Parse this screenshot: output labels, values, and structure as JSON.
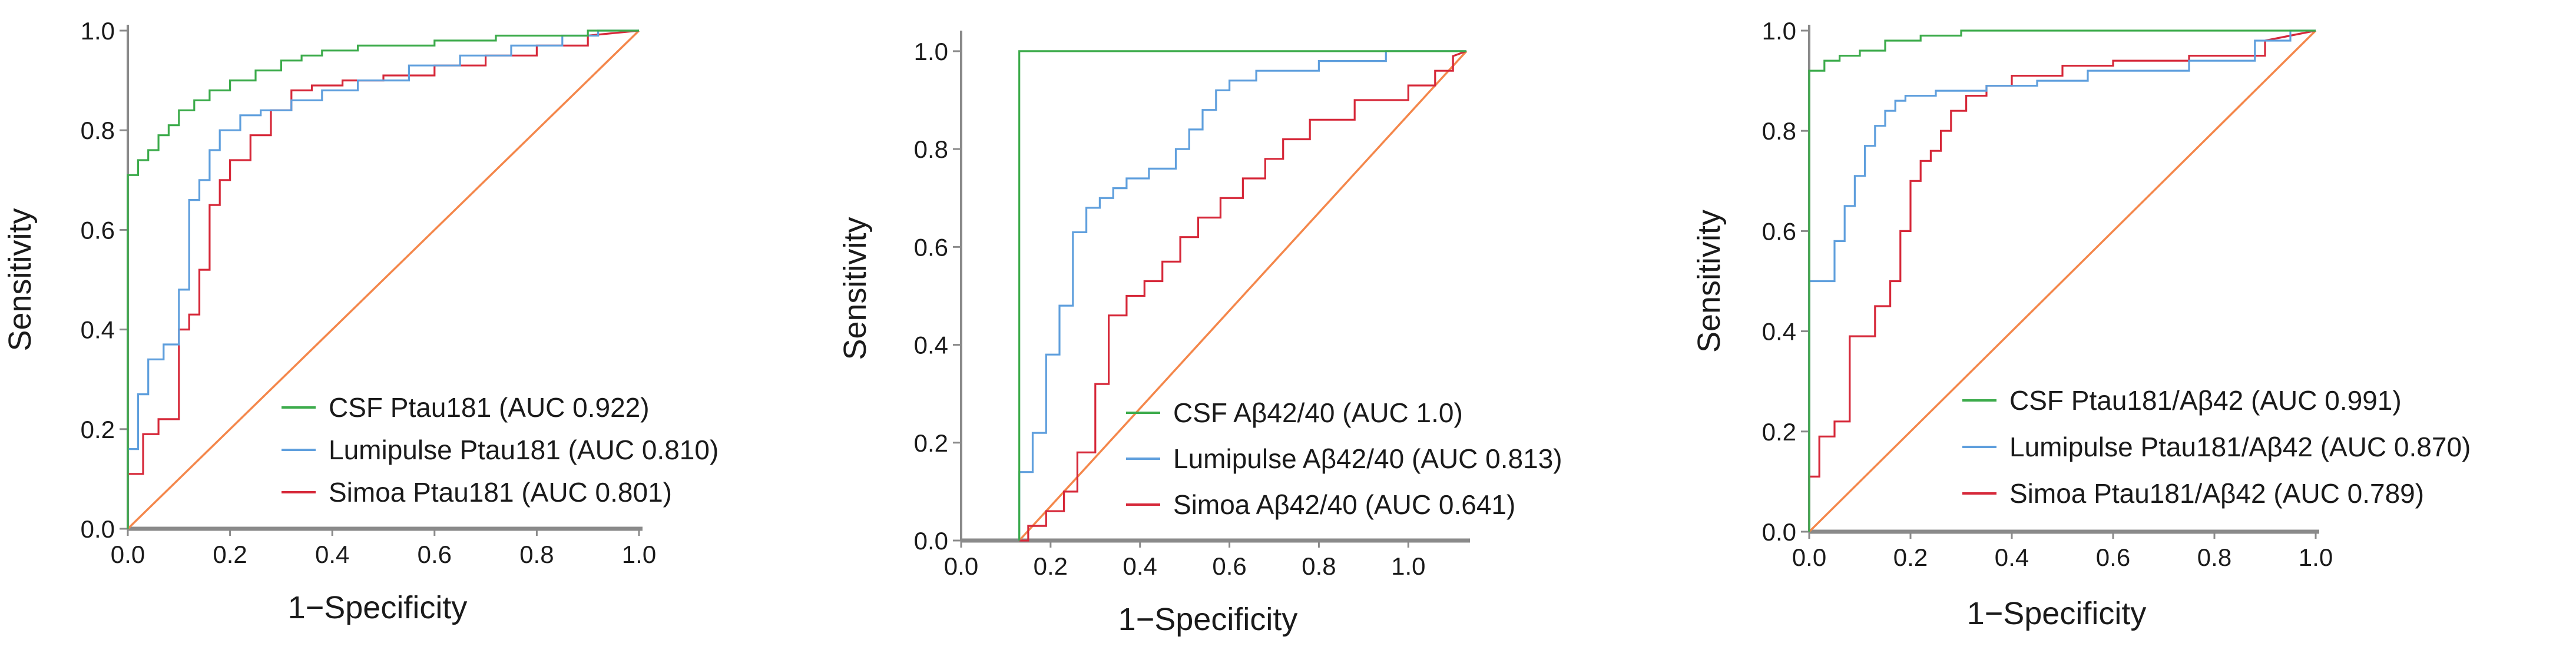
{
  "chart_data": [
    {
      "type": "line",
      "title": "",
      "xlabel": "1−Specificity",
      "ylabel": "Sensitivity",
      "xlim": [
        0,
        1
      ],
      "ylim": [
        0,
        1
      ],
      "xticks": [
        0,
        0.2,
        0.4,
        0.6,
        0.8,
        1.0
      ],
      "yticks": [
        0,
        0.2,
        0.4,
        0.6,
        0.8,
        1.0
      ],
      "xtick_labels": [
        "0.0",
        "0.2",
        "0.4",
        "0.6",
        "0.8",
        "1.0"
      ],
      "ytick_labels": [
        "0.0",
        "0.2",
        "0.4",
        "0.6",
        "0.8",
        "1.0"
      ],
      "grid": false,
      "legend_position": "bottom-right",
      "reference_line": {
        "color": "#f4874b",
        "x": [
          0,
          1
        ],
        "y": [
          0,
          1
        ]
      },
      "series": [
        {
          "name": "CSF Ptau181 (AUC 0.922)",
          "color": "#3cab4b",
          "x": [
            0,
            0,
            0.02,
            0.02,
            0.04,
            0.04,
            0.06,
            0.06,
            0.08,
            0.08,
            0.1,
            0.1,
            0.13,
            0.13,
            0.16,
            0.16,
            0.2,
            0.2,
            0.25,
            0.25,
            0.3,
            0.3,
            0.34,
            0.34,
            0.38,
            0.38,
            0.45,
            0.45,
            0.6,
            0.6,
            0.72,
            0.72,
            0.9,
            0.9,
            1.0
          ],
          "y": [
            0,
            0.71,
            0.71,
            0.74,
            0.74,
            0.76,
            0.76,
            0.79,
            0.79,
            0.81,
            0.81,
            0.84,
            0.84,
            0.86,
            0.86,
            0.88,
            0.88,
            0.9,
            0.9,
            0.92,
            0.92,
            0.94,
            0.94,
            0.95,
            0.95,
            0.96,
            0.96,
            0.97,
            0.97,
            0.98,
            0.98,
            0.99,
            0.99,
            1.0,
            1.0
          ]
        },
        {
          "name": "Lumipulse Ptau181 (AUC 0.810)",
          "color": "#5f9fdd",
          "x": [
            0,
            0,
            0.02,
            0.02,
            0.04,
            0.04,
            0.07,
            0.07,
            0.1,
            0.1,
            0.12,
            0.12,
            0.14,
            0.14,
            0.16,
            0.16,
            0.18,
            0.18,
            0.22,
            0.22,
            0.26,
            0.26,
            0.32,
            0.32,
            0.38,
            0.38,
            0.45,
            0.45,
            0.55,
            0.55,
            0.65,
            0.65,
            0.75,
            0.75,
            0.85,
            0.85,
            0.92,
            0.92,
            1.0
          ],
          "y": [
            0,
            0.16,
            0.16,
            0.27,
            0.27,
            0.34,
            0.34,
            0.37,
            0.37,
            0.48,
            0.48,
            0.66,
            0.66,
            0.7,
            0.7,
            0.76,
            0.76,
            0.8,
            0.8,
            0.83,
            0.83,
            0.84,
            0.84,
            0.86,
            0.86,
            0.88,
            0.88,
            0.9,
            0.9,
            0.93,
            0.93,
            0.95,
            0.95,
            0.97,
            0.97,
            0.99,
            0.99,
            1.0,
            1.0
          ]
        },
        {
          "name": "Simoa Ptau181 (AUC 0.801)",
          "color": "#d62839",
          "x": [
            0,
            0,
            0.03,
            0.03,
            0.06,
            0.06,
            0.1,
            0.1,
            0.12,
            0.12,
            0.14,
            0.14,
            0.16,
            0.16,
            0.18,
            0.18,
            0.2,
            0.2,
            0.24,
            0.24,
            0.28,
            0.28,
            0.32,
            0.32,
            0.36,
            0.36,
            0.42,
            0.42,
            0.5,
            0.5,
            0.6,
            0.6,
            0.7,
            0.7,
            0.8,
            0.8,
            0.9,
            0.9,
            1.0
          ],
          "y": [
            0,
            0.11,
            0.11,
            0.19,
            0.19,
            0.22,
            0.22,
            0.4,
            0.4,
            0.43,
            0.43,
            0.52,
            0.52,
            0.65,
            0.65,
            0.7,
            0.7,
            0.74,
            0.74,
            0.79,
            0.79,
            0.84,
            0.84,
            0.88,
            0.88,
            0.89,
            0.89,
            0.9,
            0.9,
            0.91,
            0.91,
            0.93,
            0.93,
            0.95,
            0.95,
            0.97,
            0.97,
            0.99,
            1.0
          ]
        }
      ]
    },
    {
      "type": "line",
      "title": "",
      "xlabel": "1−Specificity",
      "ylabel": "Sensitivity",
      "xlim": [
        0,
        1.13
      ],
      "ylim": [
        0,
        1.03
      ],
      "xticks": [
        0,
        0.2,
        0.4,
        0.6,
        0.8,
        1.0
      ],
      "yticks": [
        0,
        0.2,
        0.4,
        0.6,
        0.8,
        1.0
      ],
      "xtick_labels": [
        "0.0",
        "0.2",
        "0.4",
        "0.6",
        "0.8",
        "1.0"
      ],
      "ytick_labels": [
        "0.0",
        "0.2",
        "0.4",
        "0.6",
        "0.8",
        "1.0"
      ],
      "grid": false,
      "legend_position": "bottom-right",
      "reference_line": {
        "color": "#f4874b",
        "x": [
          0.13,
          1.13
        ],
        "y": [
          0,
          1.0
        ]
      },
      "series": [
        {
          "name": "CSF Aβ42/40 (AUC 1.0)",
          "color": "#3cab4b",
          "x": [
            0.13,
            0.13,
            1.13
          ],
          "y": [
            0,
            1.0,
            1.0
          ]
        },
        {
          "name": "Lumipulse Aβ42/40 (AUC 0.813)",
          "color": "#5f9fdd",
          "x": [
            0.13,
            0.13,
            0.16,
            0.16,
            0.19,
            0.19,
            0.22,
            0.22,
            0.25,
            0.25,
            0.28,
            0.28,
            0.31,
            0.31,
            0.34,
            0.34,
            0.37,
            0.37,
            0.42,
            0.42,
            0.48,
            0.48,
            0.51,
            0.51,
            0.54,
            0.54,
            0.57,
            0.57,
            0.6,
            0.6,
            0.66,
            0.66,
            0.8,
            0.8,
            0.95,
            0.95,
            1.13
          ],
          "y": [
            0,
            0.14,
            0.14,
            0.22,
            0.22,
            0.38,
            0.38,
            0.48,
            0.48,
            0.63,
            0.63,
            0.68,
            0.68,
            0.7,
            0.7,
            0.72,
            0.72,
            0.74,
            0.74,
            0.76,
            0.76,
            0.8,
            0.8,
            0.84,
            0.84,
            0.88,
            0.88,
            0.92,
            0.92,
            0.94,
            0.94,
            0.96,
            0.96,
            0.98,
            0.98,
            1.0,
            1.0
          ]
        },
        {
          "name": "Simoa Aβ42/40 (AUC 0.641)",
          "color": "#d62839",
          "x": [
            0.13,
            0.15,
            0.15,
            0.19,
            0.19,
            0.23,
            0.23,
            0.26,
            0.26,
            0.3,
            0.3,
            0.33,
            0.33,
            0.37,
            0.37,
            0.41,
            0.41,
            0.45,
            0.45,
            0.49,
            0.49,
            0.53,
            0.53,
            0.58,
            0.58,
            0.63,
            0.63,
            0.68,
            0.68,
            0.72,
            0.72,
            0.78,
            0.78,
            0.88,
            0.88,
            1.0,
            1.0,
            1.06,
            1.06,
            1.1,
            1.1,
            1.13
          ],
          "y": [
            0,
            0,
            0.03,
            0.03,
            0.06,
            0.06,
            0.1,
            0.1,
            0.18,
            0.18,
            0.32,
            0.32,
            0.46,
            0.46,
            0.5,
            0.5,
            0.53,
            0.53,
            0.57,
            0.57,
            0.62,
            0.62,
            0.66,
            0.66,
            0.7,
            0.7,
            0.74,
            0.74,
            0.78,
            0.78,
            0.82,
            0.82,
            0.86,
            0.86,
            0.9,
            0.9,
            0.93,
            0.93,
            0.96,
            0.96,
            0.99,
            1.0
          ]
        }
      ]
    },
    {
      "type": "line",
      "title": "",
      "xlabel": "1−Specificity",
      "ylabel": "Sensitivity",
      "xlim": [
        0,
        1
      ],
      "ylim": [
        0,
        1
      ],
      "xticks": [
        0,
        0.2,
        0.4,
        0.6,
        0.8,
        1.0
      ],
      "yticks": [
        0,
        0.2,
        0.4,
        0.6,
        0.8,
        1.0
      ],
      "xtick_labels": [
        "0.0",
        "0.2",
        "0.4",
        "0.6",
        "0.8",
        "1.0"
      ],
      "ytick_labels": [
        "0.0",
        "0.2",
        "0.4",
        "0.6",
        "0.8",
        "1.0"
      ],
      "grid": false,
      "legend_position": "bottom-right",
      "reference_line": {
        "color": "#f4874b",
        "x": [
          0,
          1
        ],
        "y": [
          0,
          1
        ]
      },
      "series": [
        {
          "name": "CSF Ptau181/Aβ42 (AUC 0.991)",
          "color": "#3cab4b",
          "x": [
            0,
            0,
            0.03,
            0.03,
            0.06,
            0.06,
            0.1,
            0.1,
            0.15,
            0.15,
            0.22,
            0.22,
            0.3,
            0.3,
            1.0
          ],
          "y": [
            0,
            0.92,
            0.92,
            0.94,
            0.94,
            0.95,
            0.95,
            0.96,
            0.96,
            0.98,
            0.98,
            0.99,
            0.99,
            1.0,
            1.0
          ]
        },
        {
          "name": "Lumipulse Ptau181/Aβ42 (AUC 0.870)",
          "color": "#5f9fdd",
          "x": [
            0,
            0,
            0.05,
            0.05,
            0.07,
            0.07,
            0.09,
            0.09,
            0.11,
            0.11,
            0.13,
            0.13,
            0.15,
            0.15,
            0.17,
            0.17,
            0.19,
            0.19,
            0.25,
            0.25,
            0.35,
            0.35,
            0.45,
            0.45,
            0.55,
            0.55,
            0.75,
            0.75,
            0.88,
            0.88,
            0.95,
            0.95,
            1.0
          ],
          "y": [
            0,
            0.5,
            0.5,
            0.58,
            0.58,
            0.65,
            0.65,
            0.71,
            0.71,
            0.77,
            0.77,
            0.81,
            0.81,
            0.84,
            0.84,
            0.86,
            0.86,
            0.87,
            0.87,
            0.88,
            0.88,
            0.89,
            0.89,
            0.9,
            0.9,
            0.92,
            0.92,
            0.94,
            0.94,
            0.98,
            0.98,
            1.0,
            1.0
          ]
        },
        {
          "name": "Simoa Ptau181/Aβ42 (AUC 0.789)",
          "color": "#d62839",
          "x": [
            0,
            0,
            0.02,
            0.02,
            0.05,
            0.05,
            0.08,
            0.08,
            0.13,
            0.13,
            0.16,
            0.16,
            0.18,
            0.18,
            0.2,
            0.2,
            0.22,
            0.22,
            0.24,
            0.24,
            0.26,
            0.26,
            0.28,
            0.28,
            0.31,
            0.31,
            0.35,
            0.35,
            0.4,
            0.4,
            0.5,
            0.5,
            0.6,
            0.6,
            0.75,
            0.75,
            0.9,
            0.9,
            1.0
          ],
          "y": [
            0,
            0.11,
            0.11,
            0.19,
            0.19,
            0.22,
            0.22,
            0.39,
            0.39,
            0.45,
            0.45,
            0.5,
            0.5,
            0.6,
            0.6,
            0.7,
            0.7,
            0.74,
            0.74,
            0.76,
            0.76,
            0.8,
            0.8,
            0.84,
            0.84,
            0.87,
            0.87,
            0.89,
            0.89,
            0.91,
            0.91,
            0.93,
            0.93,
            0.94,
            0.94,
            0.95,
            0.95,
            0.98,
            1.0
          ]
        }
      ]
    }
  ]
}
